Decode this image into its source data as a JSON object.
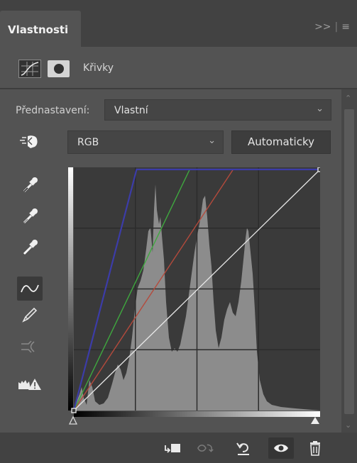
{
  "panel": {
    "tab_title": "Vlastnosti",
    "collapse_glyph": ">>",
    "menu_glyph": "≡"
  },
  "header": {
    "icon_curves": "curves-adjustment-icon",
    "icon_mask": "layer-mask-icon",
    "title": "Křivky"
  },
  "preset": {
    "label": "Přednastavení:",
    "value": "Vlastní",
    "chevron": "⌄"
  },
  "channel": {
    "value": "RGB",
    "chevron": "⌄"
  },
  "auto_button": {
    "label": "Automaticky"
  },
  "tools": [
    "on-image-adjust-icon",
    "black-point-eyedropper-icon",
    "gray-point-eyedropper-icon",
    "white-point-eyedropper-icon",
    "edit-points-curve-icon",
    "draw-pencil-icon",
    "smooth-curve-icon",
    "clipping-warning-icon"
  ],
  "curves": {
    "colors": {
      "background": "#3a3a3a",
      "histogram": "#8c8c8c",
      "grid": "#2c2c2c",
      "rgb": "#e8e8e8",
      "red": "#b44a3c",
      "green": "#3fa83f",
      "blue": "#3c3ca8"
    },
    "rgb_curve": [
      [
        0,
        0
      ],
      [
        255,
        255
      ]
    ],
    "red_curve": [
      [
        0,
        0
      ],
      [
        165,
        255
      ]
    ],
    "green_curve": [
      [
        0,
        0
      ],
      [
        120,
        255
      ]
    ],
    "blue_curve": [
      [
        0,
        0
      ],
      [
        65,
        255
      ],
      [
        255,
        255
      ]
    ]
  },
  "bottom_actions": [
    "clip-to-layer-icon",
    "view-previous-state-icon",
    "reset-defaults-icon",
    "toggle-visibility-icon",
    "delete-adjustment-icon"
  ]
}
